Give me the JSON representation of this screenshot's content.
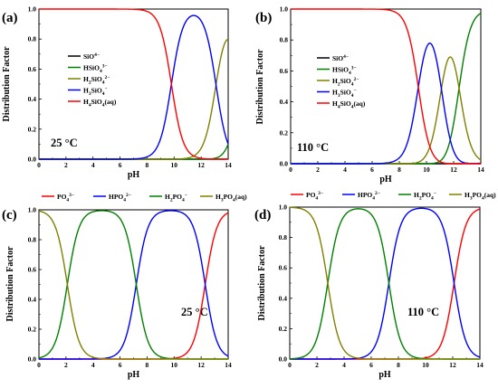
{
  "chart_data": [
    {
      "type": "line",
      "panel_label": "(a)",
      "annotation": "25 °C",
      "xlabel": "pH",
      "ylabel": "Distribution Factor",
      "xlim": [
        0,
        14
      ],
      "ylim": [
        0,
        1.0
      ],
      "xticks": [
        "0",
        "2",
        "4",
        "6",
        "8",
        "10",
        "12",
        "14"
      ],
      "yticks": [
        "0.0",
        "0.2",
        "0.4",
        "0.6",
        "0.8",
        "1.0"
      ],
      "legend_position": "left-middle",
      "curve_model": {
        "pKa": [
          9.8,
          13.1,
          14.9,
          16.5
        ]
      },
      "series": [
        {
          "name": "SiO",
          "sup": "4−",
          "color": "#000000",
          "species": "SiO4(4-)"
        },
        {
          "name": "HSiO",
          "sub": "4",
          "sup": "3−",
          "color": "#008000",
          "species": "HSiO4(3-)"
        },
        {
          "name": "H",
          "sub": "2",
          "mid": "SiO",
          "sub2": "4",
          "sup": "2−",
          "color": "#808000",
          "species": "H2SiO4(2-)"
        },
        {
          "name": "H",
          "sub": "3",
          "mid": "SiO",
          "sub2": "4",
          "sup": "−",
          "color": "#0000ff",
          "species": "H3SiO4(-)"
        },
        {
          "name": "H",
          "sub": "4",
          "mid": "SiO",
          "sub2": "4",
          "tail": "(aq)",
          "color": "#ff0000",
          "species": "H4SiO4(aq)"
        }
      ]
    },
    {
      "type": "line",
      "panel_label": "(b)",
      "annotation": "110 °C",
      "xlabel": "pH",
      "ylabel": "Distribution Factor",
      "xlim": [
        0,
        14
      ],
      "ylim": [
        0,
        1.0
      ],
      "xticks": [
        "0",
        "2",
        "4",
        "6",
        "8",
        "10",
        "12",
        "14"
      ],
      "yticks": [
        "0.0",
        "0.2",
        "0.4",
        "0.6",
        "0.8",
        "1.0"
      ],
      "legend_position": "right-middle",
      "curve_model": {
        "pKa": [
          9.4,
          11.1,
          12.4,
          16.5
        ]
      },
      "series": [
        {
          "name": "SiO",
          "sup": "4−",
          "color": "#000000",
          "species": "SiO4(4-)"
        },
        {
          "name": "HSiO",
          "sub": "4",
          "sup": "3−",
          "color": "#008000",
          "species": "HSiO4(3-)"
        },
        {
          "name": "H",
          "sub": "2",
          "mid": "SiO",
          "sub2": "4",
          "sup": "2−",
          "color": "#808000",
          "species": "H2SiO4(2-)"
        },
        {
          "name": "H",
          "sub": "3",
          "mid": "SiO",
          "sub2": "4",
          "sup": "−",
          "color": "#0000ff",
          "species": "H3SiO4(-)"
        },
        {
          "name": "H",
          "sub": "4",
          "mid": "SiO",
          "sub2": "4",
          "tail": "(aq)",
          "color": "#ff0000",
          "species": "H4SiO4(aq)"
        }
      ]
    },
    {
      "type": "line",
      "panel_label": "(c)",
      "annotation": "25 °C",
      "xlabel": "pH",
      "ylabel": "Distribution Factor",
      "xlim": [
        0,
        14
      ],
      "ylim": [
        0,
        1.0
      ],
      "xticks": [
        "0",
        "2",
        "4",
        "6",
        "8",
        "10",
        "12",
        "14"
      ],
      "yticks": [
        "0.0",
        "0.2",
        "0.4",
        "0.6",
        "0.8",
        "1.0"
      ],
      "legend_position": "top",
      "curve_model": {
        "pKa": [
          2.1,
          7.2,
          12.3
        ]
      },
      "series": [
        {
          "name": "PO",
          "sub": "4",
          "sup": "3−",
          "color": "#ff0000",
          "species": "PO4(3-)"
        },
        {
          "name": "HPO",
          "sub": "4",
          "sup": "2−",
          "color": "#0000ff",
          "species": "HPO4(2-)"
        },
        {
          "name": "H",
          "sub": "2",
          "mid": "PO",
          "sub2": "4",
          "sup": "−",
          "color": "#008000",
          "species": "H2PO4(-)"
        },
        {
          "name": "H",
          "sub": "3",
          "mid": "PO",
          "sub2": "4",
          "tail": "(aq)",
          "color": "#808000",
          "species": "H3PO4(aq)"
        }
      ]
    },
    {
      "type": "line",
      "panel_label": "(d)",
      "annotation": "110 °C",
      "xlabel": "pH",
      "ylabel": "Distribution Factor",
      "xlim": [
        0,
        14
      ],
      "ylim": [
        0,
        1.0
      ],
      "xticks": [
        "0",
        "2",
        "4",
        "6",
        "8",
        "10",
        "12",
        "14"
      ],
      "yticks": [
        "0.0",
        "0.2",
        "0.4",
        "0.6",
        "0.8",
        "1.0"
      ],
      "legend_position": "top",
      "curve_model": {
        "pKa": [
          2.8,
          7.3,
          12.1
        ]
      },
      "series": [
        {
          "name": "PO",
          "sub": "4",
          "sup": "3−",
          "color": "#ff0000",
          "species": "PO4(3-)"
        },
        {
          "name": "HPO",
          "sub": "4",
          "sup": "2−",
          "color": "#0000ff",
          "species": "HPO4(2-)"
        },
        {
          "name": "H",
          "sub": "2",
          "mid": "PO",
          "sub2": "4",
          "sup": "−",
          "color": "#008000",
          "species": "H2PO4(-)"
        },
        {
          "name": "H",
          "sub": "3",
          "mid": "PO",
          "sub2": "4",
          "tail": "(aq)",
          "color": "#808000",
          "species": "H3PO4(aq)"
        }
      ]
    }
  ]
}
